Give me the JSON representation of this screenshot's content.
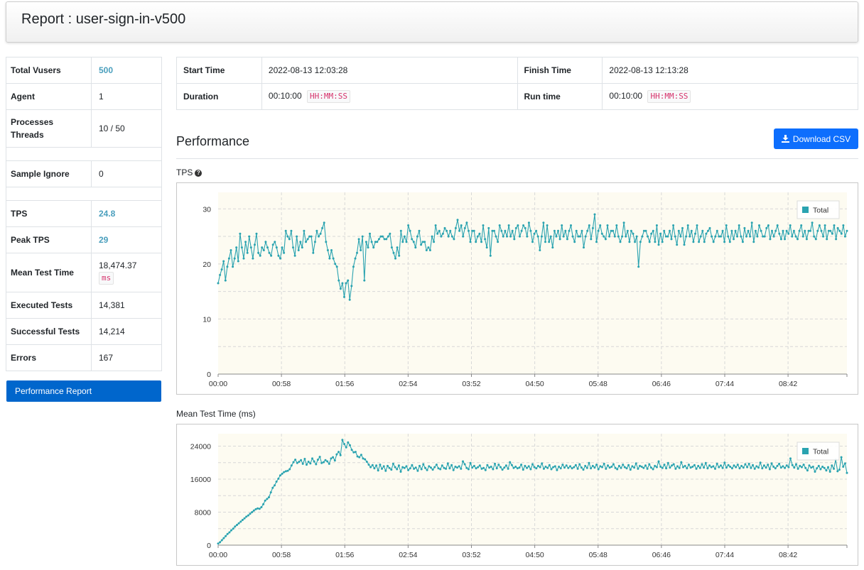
{
  "report": {
    "title": "Report : user-sign-in-v500"
  },
  "summary": {
    "total_vusers_label": "Total Vusers",
    "total_vusers": "500",
    "agent_label": "Agent",
    "agent": "1",
    "processes_label": "Processes",
    "threads_label": "Threads",
    "processes_threads": "10 / 50",
    "sample_ignore_label": "Sample Ignore",
    "sample_ignore": "0",
    "tps_label": "TPS",
    "tps": "24.8",
    "peak_tps_label": "Peak TPS",
    "peak_tps": "29",
    "mean_test_time_label": "Mean Test Time",
    "mean_test_time": "18,474.37",
    "mean_test_time_unit": "ms",
    "executed_tests_label": "Executed Tests",
    "executed_tests": "14,381",
    "successful_tests_label": "Successful Tests",
    "successful_tests": "14,214",
    "errors_label": "Errors",
    "errors": "167"
  },
  "nav": {
    "performance_report": "Performance Report"
  },
  "run": {
    "start_time_label": "Start Time",
    "start_time": "2022-08-13 12:03:28",
    "finish_time_label": "Finish Time",
    "finish_time": "2022-08-13 12:13:28",
    "duration_label": "Duration",
    "duration": "00:10:00",
    "duration_unit": "HH:MM:SS",
    "run_time_label": "Run time",
    "run_time": "00:10:00",
    "run_time_unit": "HH:MM:SS"
  },
  "performance": {
    "title": "Performance",
    "download_csv": "Download CSV"
  },
  "colors": {
    "series": "#2aa3b0",
    "plot_bg": "#fdfbf1",
    "button": "#0d6efd",
    "nav": "#0066cc"
  },
  "icons": {
    "download": "download-icon",
    "help": "question-circle-icon"
  },
  "chart_data": [
    {
      "type": "line",
      "title": "TPS",
      "x_ticks": [
        "00:00",
        "00:58",
        "01:56",
        "02:54",
        "03:52",
        "04:50",
        "05:48",
        "06:46",
        "07:44",
        "08:42"
      ],
      "y_ticks": [
        0,
        10,
        20,
        30
      ],
      "ylim": [
        0,
        33
      ],
      "legend": "top-right",
      "series": [
        {
          "name": "Total",
          "values": [
            16.5,
            18,
            19,
            20.5,
            17,
            19.5,
            21,
            22.5,
            19.5,
            21,
            23,
            20.5,
            25.5,
            23,
            21,
            24,
            22,
            25,
            23,
            21,
            23.5,
            25.5,
            22,
            21.5,
            23,
            22.5,
            24,
            23,
            22,
            21.5,
            23.5,
            24,
            23,
            21.5,
            21,
            23,
            22,
            26,
            25,
            24.5,
            26,
            23,
            21.5,
            25,
            22.5,
            24,
            23,
            26,
            24,
            24.5,
            25,
            25,
            22,
            24,
            26,
            25,
            25.5,
            26.5,
            27.5,
            24,
            22.5,
            21,
            22.5,
            21,
            20,
            19.5,
            17,
            15.5,
            16.5,
            14,
            16.5,
            17,
            13.5,
            16,
            19.5,
            21,
            22,
            24.5,
            22.5,
            25,
            17,
            24,
            23,
            25.5,
            24,
            23,
            24,
            24,
            24.5,
            25,
            25,
            24.5,
            24.5,
            25,
            25.5,
            23,
            22,
            21,
            23,
            21.5,
            26,
            24,
            25,
            24,
            27,
            26,
            24.5,
            24,
            23,
            25,
            26,
            23.5,
            24,
            24,
            22.5,
            23,
            22.5,
            25,
            24,
            27,
            25.5,
            26,
            25,
            25.5,
            26.5,
            26,
            25,
            26,
            25,
            24.5,
            26.5,
            28,
            26,
            27,
            25,
            26.5,
            27.5,
            26,
            24,
            26,
            26,
            24,
            25,
            25.5,
            24,
            27,
            24.5,
            23,
            26.5,
            21.5,
            26,
            26,
            25,
            24,
            27,
            26,
            25,
            26,
            25,
            27,
            25,
            26,
            24.5,
            26.5,
            27,
            25,
            26,
            27,
            26.5,
            25,
            27.5,
            26,
            24,
            25.5,
            26,
            25,
            22.5,
            25,
            27.5,
            24,
            27,
            24,
            25,
            23,
            26,
            25,
            26,
            24.5,
            27,
            25,
            26,
            24.5,
            26,
            27,
            25,
            24,
            26,
            25,
            25,
            26,
            23,
            25,
            26,
            27,
            24.5,
            26.5,
            29,
            24,
            26,
            27,
            25.5,
            25,
            24.5,
            27,
            25,
            26,
            26,
            25,
            27,
            25,
            24,
            25,
            27.5,
            25,
            26,
            24,
            26,
            25.5,
            24,
            25,
            19.5,
            24,
            25,
            26,
            26,
            25,
            24,
            25.5,
            26,
            24,
            27,
            23.5,
            25.5,
            24,
            26,
            25,
            25,
            26,
            24.5,
            27,
            25,
            23.5,
            26,
            25,
            26.5,
            23.5,
            25,
            27,
            25,
            26,
            24,
            25.5,
            27,
            24,
            25,
            26,
            24,
            25.5,
            26,
            26.5,
            25,
            24,
            25,
            26,
            25,
            25,
            26,
            24,
            27,
            25,
            24,
            26,
            24.5,
            26,
            25,
            27,
            25,
            24,
            26.5,
            25,
            26,
            25,
            27.5,
            24,
            26,
            25,
            27,
            26,
            25,
            25,
            26.5,
            27,
            24.5,
            26,
            25,
            26,
            27,
            25.5,
            24.5,
            26,
            24.5,
            26,
            25.5,
            27,
            25,
            26,
            25,
            24.5,
            26,
            27,
            25,
            26,
            24.5,
            26,
            26,
            27.5,
            25,
            24.5,
            26,
            27,
            26,
            25,
            27,
            24.5,
            26,
            26,
            25.5,
            27,
            24.5,
            26.5,
            26,
            25.5,
            27,
            25,
            26
          ]
        }
      ]
    },
    {
      "type": "line",
      "title": "Mean Test Time (ms)",
      "x_ticks": [
        "00:00",
        "00:58",
        "01:56",
        "02:54",
        "03:52",
        "04:50",
        "05:48",
        "06:46",
        "07:44",
        "08:42"
      ],
      "y_ticks": [
        0,
        8000,
        16000,
        24000
      ],
      "ylim": [
        0,
        27000
      ],
      "legend": "top-right",
      "series": [
        {
          "name": "Total",
          "values": [
            400,
            700,
            1200,
            1700,
            2200,
            2700,
            3100,
            3600,
            4000,
            4500,
            4900,
            5300,
            5700,
            6100,
            6500,
            6900,
            7200,
            7600,
            8000,
            8400,
            8700,
            8900,
            8800,
            9200,
            9900,
            10800,
            11200,
            11600,
            12800,
            13900,
            14500,
            15400,
            16100,
            16900,
            17300,
            17700,
            17900,
            18000,
            18400,
            19300,
            20100,
            20700,
            19900,
            20200,
            20600,
            19700,
            20900,
            19500,
            20200,
            19800,
            21000,
            20300,
            19600,
            20700,
            21400,
            19900,
            20100,
            20600,
            20300,
            19700,
            21000,
            21300,
            20500,
            22000,
            22600,
            21800,
            25500,
            24500,
            23700,
            24900,
            24200,
            23100,
            22500,
            22600,
            21500,
            21300,
            21900,
            21000,
            20800,
            20200,
            19500,
            18900,
            19400,
            18600,
            19300,
            18100,
            19500,
            18500,
            19100,
            18000,
            19200,
            18700,
            18300,
            19700,
            18900,
            18400,
            19300,
            17800,
            18900,
            18700,
            19100,
            18200,
            18600,
            19400,
            18500,
            18800,
            18000,
            19200,
            18400,
            19600,
            18700,
            18200,
            19100,
            18800,
            18300,
            18900,
            19500,
            18600,
            18400,
            19300,
            18700,
            18500,
            19800,
            18600,
            19400,
            18200,
            19000,
            18800,
            19100,
            18500,
            20300,
            19600,
            18700,
            18400,
            19900,
            18800,
            19200,
            18600,
            18900,
            19300,
            18500,
            18700,
            18200,
            19400,
            18800,
            19000,
            18400,
            19700,
            18600,
            19500,
            18900,
            18300,
            18800,
            19300,
            18500,
            20100,
            19400,
            18700,
            19000,
            18600,
            18800,
            19500,
            18300,
            19200,
            18700,
            19100,
            18400,
            19600,
            18900,
            18600,
            19200,
            18900,
            19800,
            18500,
            19000,
            18700,
            19400,
            18400,
            18900,
            19100,
            18200,
            19000,
            18600,
            19500,
            18800,
            19300,
            18700,
            19100,
            18600,
            18900,
            19400,
            18500,
            19600,
            18800,
            18300,
            19200,
            18700,
            19900,
            18600,
            19200,
            18800,
            19500,
            18400,
            19100,
            18900,
            19700,
            18500,
            19300,
            18800,
            19000,
            19600,
            18700,
            18400,
            19200,
            18700,
            19500,
            18900,
            18600,
            19400,
            18300,
            19100,
            18800,
            19800,
            18500,
            19200,
            19000,
            18700,
            19300,
            18500,
            19600,
            18800,
            18400,
            19200,
            18900,
            20300,
            19000,
            18700,
            19500,
            18600,
            19900,
            18800,
            19300,
            19600,
            18500,
            19100,
            18700,
            20100,
            18900,
            19200,
            18600,
            19500,
            18800,
            19000,
            19400,
            18500,
            19200,
            18700,
            19600,
            18800,
            19900,
            18600,
            19300,
            18900,
            19100,
            18500,
            19700,
            18900,
            19300,
            18700,
            20000,
            18800,
            19400,
            19000,
            18600,
            19300,
            18900,
            19500,
            18600,
            19200,
            18800,
            19600,
            18900,
            19700,
            18700,
            19400,
            18500,
            19100,
            18800,
            20000,
            18600,
            19300,
            18800,
            19500,
            18400,
            19800,
            19000,
            18600,
            19200,
            19700,
            18800,
            19100,
            18700,
            19300,
            18900,
            21000,
            19400,
            18800,
            19600,
            18500,
            19200,
            18900,
            19500,
            18700,
            18100,
            19300,
            18800,
            19000,
            17800,
            18600,
            19200,
            18400,
            19000,
            18700,
            18100,
            18900,
            17800,
            19300,
            18500,
            20700,
            17900,
            18300,
            21300,
            19000,
            19800,
            17500
          ]
        }
      ]
    }
  ]
}
